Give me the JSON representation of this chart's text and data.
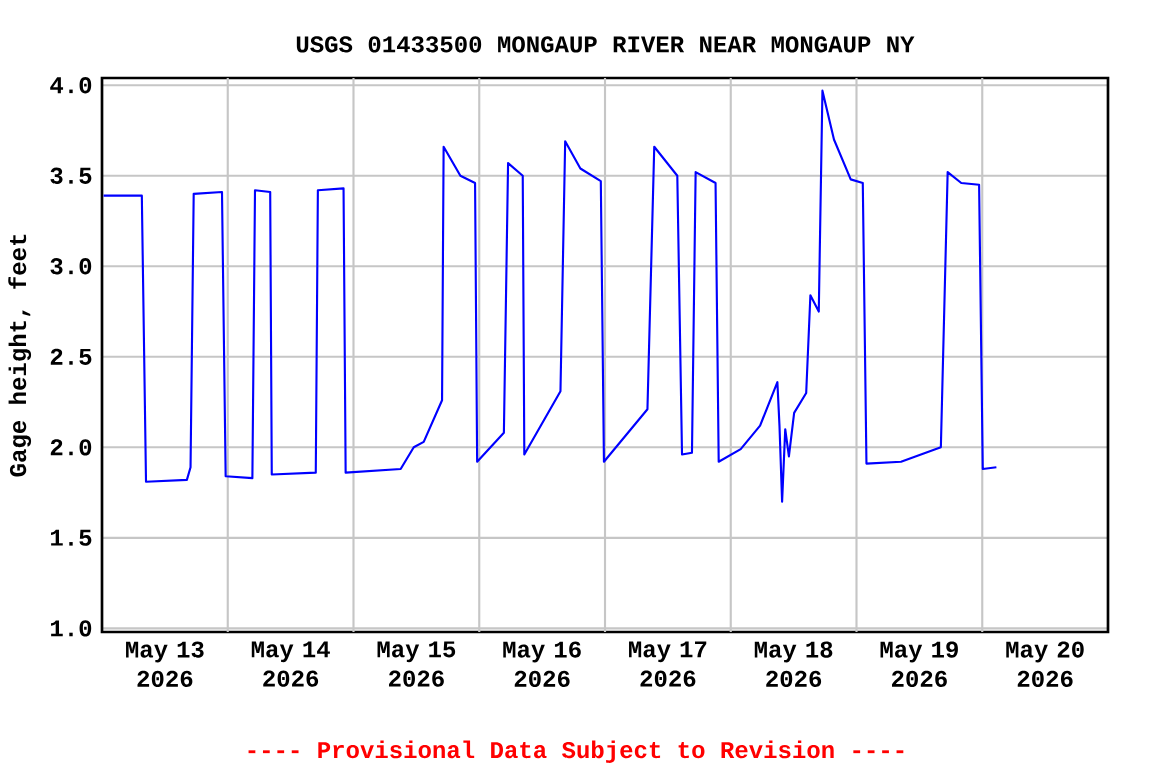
{
  "chart_data": {
    "type": "line",
    "title": "USGS 01433500 MONGAUP RIVER NEAR MONGAUP NY",
    "ylabel": "Gage height, feet",
    "annotations": [
      "---- Provisional Data Subject to Revision ----"
    ],
    "xlim": [
      "2026-05-13T00:00",
      "2026-05-21T00:00"
    ],
    "xticks": [
      {
        "value": "2026-05-13T12:00",
        "label": "May 13 2026"
      },
      {
        "value": "2026-05-14T00:00",
        "label": null
      },
      {
        "value": "2026-05-14T12:00",
        "label": "May 14 2026"
      },
      {
        "value": "2026-05-15T00:00",
        "label": null
      },
      {
        "value": "2026-05-15T12:00",
        "label": "May 15 2026"
      },
      {
        "value": "2026-05-16T00:00",
        "label": null
      },
      {
        "value": "2026-05-16T12:00",
        "label": "May 16 2026"
      },
      {
        "value": "2026-05-17T00:00",
        "label": null
      },
      {
        "value": "2026-05-17T12:00",
        "label": "May 17 2026"
      },
      {
        "value": "2026-05-18T00:00",
        "label": null
      },
      {
        "value": "2026-05-18T12:00",
        "label": "May 18 2026"
      },
      {
        "value": "2026-05-19T00:00",
        "label": null
      },
      {
        "value": "2026-05-19T12:00",
        "label": "May 19 2026"
      },
      {
        "value": "2026-05-20T00:00",
        "label": null
      },
      {
        "value": "2026-05-20T12:00",
        "label": "May 20 2026"
      }
    ],
    "ylim": [
      0.98,
      4.04
    ],
    "yticks": [
      {
        "value": 1,
        "label": "1.0"
      },
      {
        "value": 1.5,
        "label": "1.5"
      },
      {
        "value": 2,
        "label": "2.0"
      },
      {
        "value": 2.5,
        "label": "2.5"
      },
      {
        "value": 3,
        "label": "3.0"
      },
      {
        "value": 3.5,
        "label": "3.5"
      },
      {
        "value": 4,
        "label": "4.0"
      }
    ],
    "grid": true,
    "series": [
      {
        "color": "#0000ff",
        "x": [
          "2026-05-13T00:18",
          "2026-05-13T07:36",
          "2026-05-13T08:24",
          "2026-05-13T16:12",
          "2026-05-13T16:54",
          "2026-05-13T17:30",
          "2026-05-13T22:54",
          "2026-05-13T23:36",
          "2026-05-14T04:42",
          "2026-05-14T05:12",
          "2026-05-14T08:06",
          "2026-05-14T08:24",
          "2026-05-14T16:48",
          "2026-05-14T17:12",
          "2026-05-14T22:06",
          "2026-05-14T22:30",
          "2026-05-15T09:00",
          "2026-05-15T11:30",
          "2026-05-15T13:24",
          "2026-05-15T16:54",
          "2026-05-15T17:12",
          "2026-05-15T20:24",
          "2026-05-15T23:12",
          "2026-05-15T23:36",
          "2026-05-16T04:42",
          "2026-05-16T05:30",
          "2026-05-16T08:18",
          "2026-05-16T08:36",
          "2026-05-16T15:30",
          "2026-05-16T16:24",
          "2026-05-16T19:18",
          "2026-05-16T23:12",
          "2026-05-16T23:48",
          "2026-05-17T08:06",
          "2026-05-17T09:24",
          "2026-05-17T13:48",
          "2026-05-17T14:42",
          "2026-05-17T16:36",
          "2026-05-17T17:18",
          "2026-05-17T21:06",
          "2026-05-17T21:42",
          "2026-05-18T01:54",
          "2026-05-18T05:36",
          "2026-05-18T08:54",
          "2026-05-18T09:18",
          "2026-05-18T09:48",
          "2026-05-18T10:24",
          "2026-05-18T11:06",
          "2026-05-18T12:06",
          "2026-05-18T14:24",
          "2026-05-18T15:12",
          "2026-05-18T16:48",
          "2026-05-18T17:30",
          "2026-05-18T19:42",
          "2026-05-18T22:54",
          "2026-05-19T01:12",
          "2026-05-19T01:54",
          "2026-05-19T08:30",
          "2026-05-19T16:06",
          "2026-05-19T17:24",
          "2026-05-19T20:00",
          "2026-05-19T23:24",
          "2026-05-20T00:06",
          "2026-05-20T02:42"
        ],
        "values": [
          3.39,
          3.39,
          1.81,
          1.82,
          1.89,
          3.4,
          3.41,
          1.84,
          1.83,
          3.42,
          3.41,
          1.85,
          1.86,
          3.42,
          3.43,
          1.86,
          1.88,
          2.0,
          2.03,
          2.26,
          3.66,
          3.5,
          3.46,
          1.92,
          2.08,
          3.57,
          3.5,
          1.96,
          2.31,
          3.69,
          3.54,
          3.47,
          1.92,
          2.21,
          3.66,
          3.5,
          1.96,
          1.97,
          3.52,
          3.46,
          1.92,
          1.99,
          2.12,
          2.36,
          2.12,
          1.7,
          2.1,
          1.95,
          2.19,
          2.3,
          2.84,
          2.75,
          3.97,
          3.7,
          3.48,
          3.46,
          1.91,
          1.92,
          2.0,
          3.52,
          3.46,
          3.45,
          1.88,
          1.89
        ]
      }
    ]
  }
}
